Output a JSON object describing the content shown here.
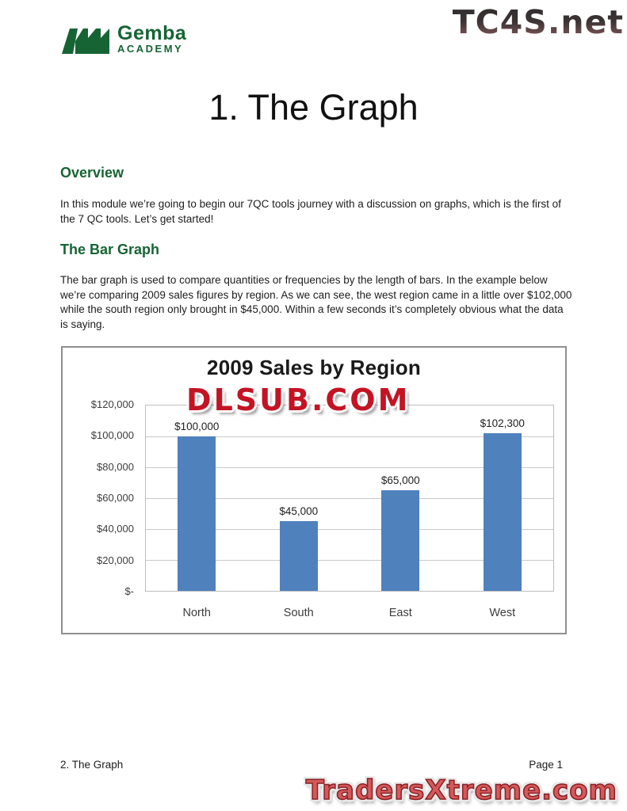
{
  "header": {
    "logo": {
      "name": "Gemba",
      "sub": "ACADEMY"
    }
  },
  "title": "1. The Graph",
  "sections": [
    {
      "heading": "Overview",
      "body": "In this module we’re going to begin our 7QC tools journey with a discussion on graphs, which is the first of the 7 QC tools.  Let’s get started!"
    },
    {
      "heading": "The Bar Graph",
      "body": "The bar graph is used to compare quantities or frequencies by the length of bars.  In the example below we’re comparing 2009 sales figures by region.  As we can see, the west region came in a little over $102,000 while the south region only brought in $45,000.  Within a few seconds it’s completely obvious what the data is saying."
    }
  ],
  "chart_data": {
    "type": "bar",
    "title": "2009 Sales by Region",
    "categories": [
      "North",
      "South",
      "East",
      "West"
    ],
    "values": [
      100000,
      45000,
      65000,
      102300
    ],
    "data_labels": [
      "$100,000",
      "$45,000",
      "$65,000",
      "$102,300"
    ],
    "y_tick_labels_top_down": [
      "$120,000",
      "$100,000",
      "$80,000",
      "$60,000",
      "$40,000",
      "$20,000",
      "$-"
    ],
    "ylim": [
      0,
      120000
    ],
    "xlabel": "",
    "ylabel": "",
    "grid": true,
    "legend_position": "none",
    "bar_color": "#4F81BD"
  },
  "watermarks": {
    "top": "TC4S.net",
    "chart": "DLSUB.COM",
    "bottom": "TradersXtreme.com"
  },
  "footer": {
    "left": "2. The Graph",
    "right": "Page 1"
  },
  "colors": {
    "accent_green": "#166434",
    "bar_blue": "#4F81BD",
    "watermark_red": "#C41424"
  }
}
